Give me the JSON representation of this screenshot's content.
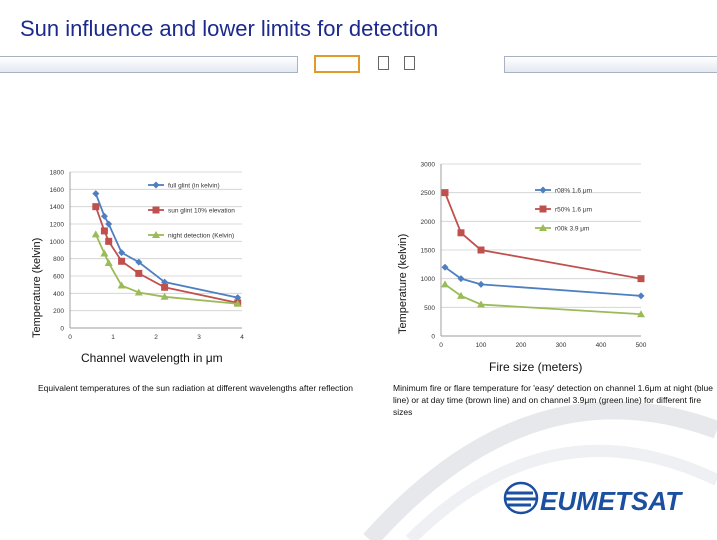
{
  "title": "Sun influence and lower limits for detection",
  "left_panel": {
    "ylabel": "Temperature (kelvin)",
    "xlabel": "Channel wavelength in μm",
    "caption": "Equivalent temperatures of the sun radiation at different wavelengths after reflection"
  },
  "right_panel": {
    "ylabel": "Temperature (kelvin)",
    "xlabel": "Fire size (meters)",
    "caption": "Minimum fire or flare temperature for 'easy' detection on channel 1.6μm at night (blue line) or at day time (brown line) and on channel 3.9μm (green line) for different fire sizes"
  },
  "logo_text": "EUMETSAT",
  "colors": {
    "blue": "#4f7fc0",
    "red": "#c0504d",
    "green": "#9bbb59",
    "title": "#1b2a8c"
  },
  "chart_data": [
    {
      "type": "line",
      "xlim": [
        0,
        4
      ],
      "ylim": [
        0,
        1800
      ],
      "x_ticks": [
        "0",
        "1",
        "2",
        "3",
        "4"
      ],
      "y_ticks": [
        "0",
        "200",
        "400",
        "600",
        "800",
        "1000",
        "1200",
        "1400",
        "1600",
        "1800"
      ],
      "series": [
        {
          "name": "full glint (in kelvin)",
          "color": "#4f7fc0",
          "marker": "diamond",
          "x": [
            0.6,
            0.8,
            0.9,
            1.2,
            1.6,
            2.2,
            3.9
          ],
          "y": [
            1550,
            1290,
            1200,
            870,
            760,
            530,
            350
          ]
        },
        {
          "name": "sun glint 10% elevation",
          "color": "#c0504d",
          "marker": "square",
          "x": [
            0.6,
            0.8,
            0.9,
            1.2,
            1.6,
            2.2,
            3.9
          ],
          "y": [
            1400,
            1120,
            1000,
            770,
            630,
            470,
            290
          ]
        },
        {
          "name": "night detection (Kelvin)",
          "color": "#9bbb59",
          "marker": "triangle",
          "x": [
            0.6,
            0.8,
            0.9,
            1.2,
            1.6,
            2.2,
            3.9
          ],
          "y": [
            1080,
            860,
            750,
            490,
            410,
            360,
            280
          ]
        }
      ]
    },
    {
      "type": "line",
      "xlim": [
        0,
        500
      ],
      "ylim": [
        0,
        3000
      ],
      "x_ticks": [
        "0",
        "100",
        "200",
        "300",
        "400",
        "500"
      ],
      "y_ticks": [
        "0",
        "500",
        "1000",
        "1500",
        "2000",
        "2500",
        "3000"
      ],
      "series": [
        {
          "name": "r08% 1.6 μm",
          "color": "#4f7fc0",
          "marker": "diamond",
          "x": [
            10,
            50,
            100,
            500
          ],
          "y": [
            1200,
            1000,
            900,
            700
          ]
        },
        {
          "name": "r50% 1.6 μm",
          "color": "#c0504d",
          "marker": "square",
          "x": [
            10,
            50,
            100,
            500
          ],
          "y": [
            2500,
            1800,
            1500,
            1000
          ]
        },
        {
          "name": "r00k 3.9 μm",
          "color": "#9bbb59",
          "marker": "triangle",
          "x": [
            10,
            50,
            100,
            500
          ],
          "y": [
            900,
            700,
            550,
            380
          ]
        }
      ]
    }
  ]
}
